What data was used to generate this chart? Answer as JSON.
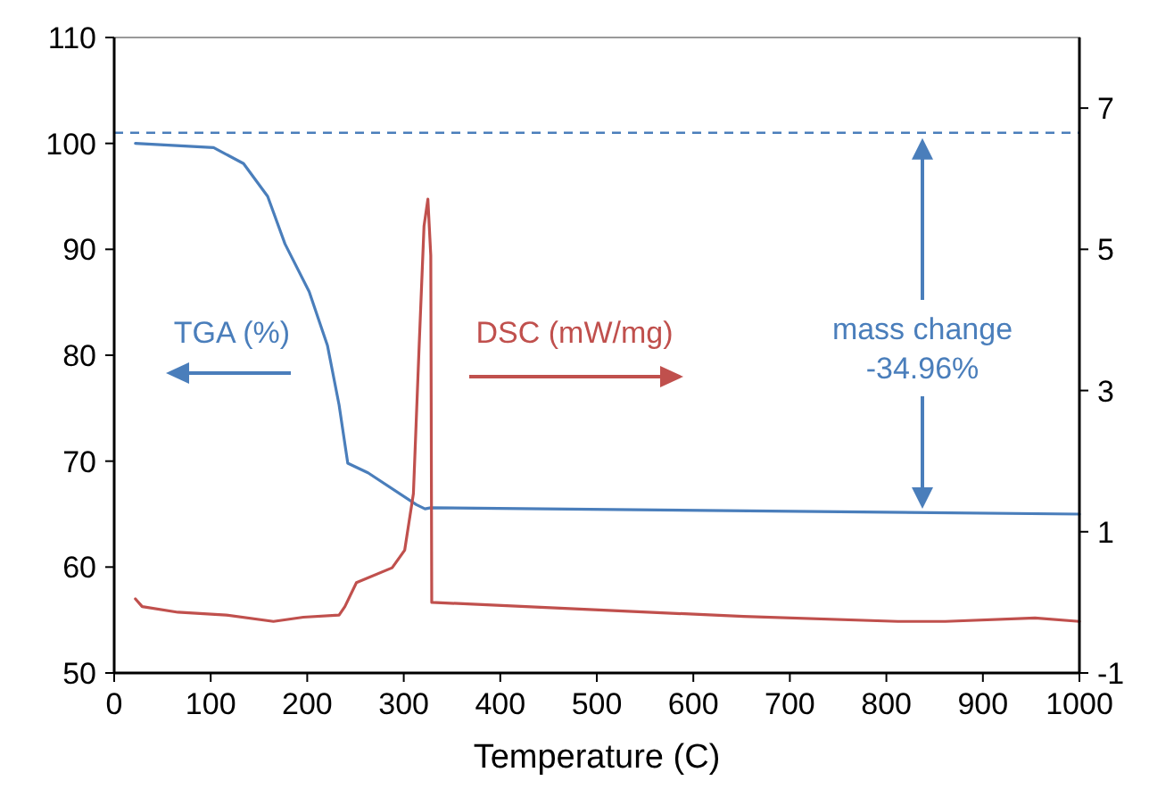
{
  "chart_data": {
    "type": "line",
    "xlabel": "Temperature (C)",
    "xlim": [
      0,
      1000
    ],
    "xticks": [
      0,
      100,
      200,
      300,
      400,
      500,
      600,
      700,
      800,
      900,
      1000
    ],
    "ylim": [
      50,
      110
    ],
    "yticks": [
      50,
      60,
      70,
      80,
      90,
      100,
      110
    ],
    "y2lim": [
      -1,
      8
    ],
    "y2ticks": [
      -1,
      1,
      3,
      5,
      7
    ],
    "grid": false,
    "marker": "none",
    "line_style": "solid",
    "ref_lines": [
      {
        "axis": "y",
        "value": 101,
        "color": "#4a7ebb",
        "line_style": "dashed"
      }
    ],
    "annotations": [
      "TGA (%)",
      "DSC (mW/mg)",
      "mass change\n-34.96%"
    ],
    "series": [
      {
        "color": "#4a7ebb",
        "x": [
          22,
          103,
          134,
          159,
          177,
          202,
          221,
          233,
          242,
          263,
          313,
          322,
          328,
          1000
        ],
        "values": [
          100,
          99.6,
          98.1,
          95,
          90.5,
          86,
          80.9,
          75.3,
          69.8,
          68.9,
          65.9,
          65.5,
          65.6,
          65.0
        ]
      },
      {
        "color": "#c0504d",
        "axis": "y2",
        "x": [
          22,
          29,
          66,
          116,
          165,
          196,
          233,
          239,
          251,
          288,
          301,
          310,
          316,
          321,
          325,
          328,
          329,
          492,
          652,
          812,
          861,
          954,
          1000
        ],
        "values": [
          0.05,
          -0.06,
          -0.14,
          -0.18,
          -0.27,
          -0.21,
          -0.18,
          -0.06,
          0.28,
          0.49,
          0.74,
          1.54,
          3.65,
          5.33,
          5.71,
          4.91,
          0.0,
          -0.1,
          -0.2,
          -0.27,
          -0.27,
          -0.22,
          -0.27
        ]
      }
    ]
  }
}
